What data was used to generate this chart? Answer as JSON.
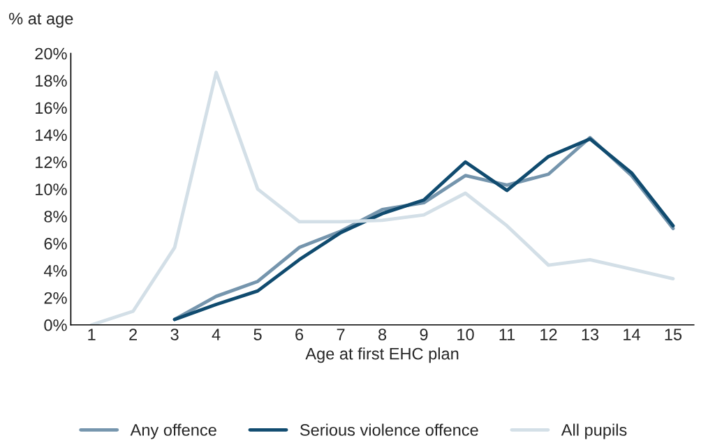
{
  "chart_data": {
    "type": "line",
    "xlabel": "Age at first EHC plan",
    "ylabel": "% at age",
    "categories": [
      "1",
      "2",
      "3",
      "4",
      "5",
      "6",
      "7",
      "8",
      "9",
      "10",
      "11",
      "12",
      "13",
      "14",
      "15"
    ],
    "series": [
      {
        "name": "Any offence",
        "color": "#7595ad",
        "values": [
          null,
          null,
          0.4,
          2.1,
          3.2,
          5.7,
          6.9,
          8.5,
          9.0,
          11.0,
          10.3,
          11.1,
          13.8,
          11.0,
          7.1
        ]
      },
      {
        "name": "Serious violence offence",
        "color": "#104b6f",
        "values": [
          null,
          null,
          0.4,
          1.5,
          2.5,
          4.8,
          6.8,
          8.2,
          9.2,
          12.0,
          9.9,
          12.4,
          13.7,
          11.2,
          7.3
        ]
      },
      {
        "name": "All pupils",
        "color": "#d3dfe7",
        "values": [
          0,
          1.0,
          5.7,
          18.6,
          10.0,
          7.6,
          7.6,
          7.7,
          8.1,
          9.7,
          7.3,
          4.4,
          4.8,
          4.1,
          3.4
        ]
      }
    ],
    "ylim": [
      0,
      20
    ],
    "yticks": [
      {
        "value": 0,
        "label": "0%"
      },
      {
        "value": 2,
        "label": "2%"
      },
      {
        "value": 4,
        "label": "4%"
      },
      {
        "value": 6,
        "label": "6%"
      },
      {
        "value": 8,
        "label": "8%"
      },
      {
        "value": 10,
        "label": "10%"
      },
      {
        "value": 12,
        "label": "12%"
      },
      {
        "value": 14,
        "label": "14%"
      },
      {
        "value": 16,
        "label": "16%"
      },
      {
        "value": 18,
        "label": "18%"
      },
      {
        "value": 20,
        "label": "20%"
      }
    ],
    "grid": false,
    "legend": "bottom",
    "marker": "none",
    "line_style": "solid"
  }
}
